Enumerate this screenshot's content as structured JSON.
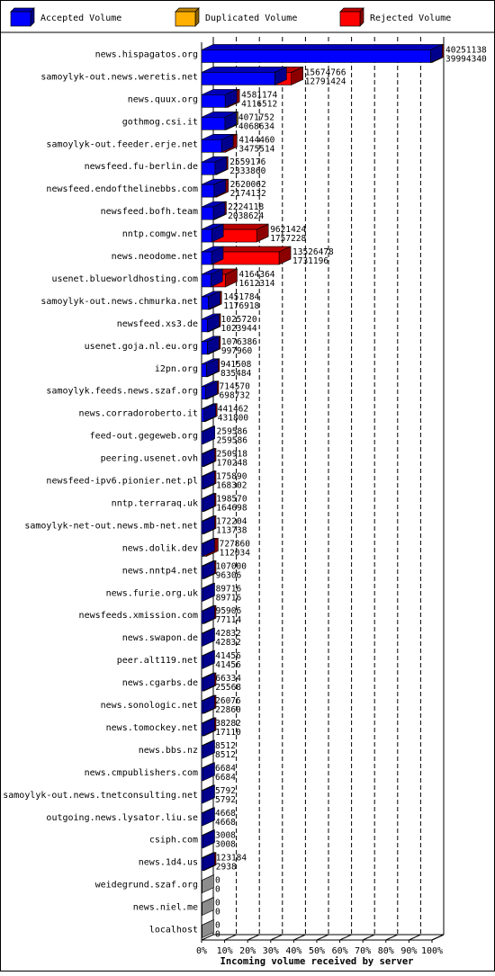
{
  "chart_data": {
    "type": "bar",
    "title": "",
    "xlabel": "Incoming volume received by server",
    "ylabel": "",
    "xlim": [
      0,
      100
    ],
    "x_unit": "percent",
    "x_ticks": [
      "0%",
      "10%",
      "20%",
      "30%",
      "40%",
      "50%",
      "60%",
      "70%",
      "80%",
      "90%",
      "100%"
    ],
    "legend_position": "top",
    "grid": true,
    "legend": [
      {
        "name": "Accepted Volume",
        "color": "#0000ff"
      },
      {
        "name": "Duplicated Volume",
        "color": "#ffb000"
      },
      {
        "name": "Rejected Volume",
        "color": "#ff0000"
      }
    ],
    "categories": [
      "news.hispagatos.org",
      "samoylyk-out.news.weretis.net",
      "news.quux.org",
      "gothmog.csi.it",
      "samoylyk-out.feeder.erje.net",
      "newsfeed.fu-berlin.de",
      "newsfeed.endofthelinebbs.com",
      "newsfeed.bofh.team",
      "nntp.comgw.net",
      "news.neodome.net",
      "usenet.blueworldhosting.com",
      "samoylyk-out.news.chmurka.net",
      "newsfeed.xs3.de",
      "usenet.goja.nl.eu.org",
      "i2pn.org",
      "samoylyk.feeds.news.szaf.org",
      "news.corradoroberto.it",
      "feed-out.gegeweb.org",
      "peering.usenet.ovh",
      "newsfeed-ipv6.pionier.net.pl",
      "nntp.terraraq.uk",
      "samoylyk-net-out.news.mb-net.net",
      "news.dolik.dev",
      "news.nntp4.net",
      "news.furie.org.uk",
      "newsfeeds.xmission.com",
      "news.swapon.de",
      "peer.alt119.net",
      "news.cgarbs.de",
      "news.sonologic.net",
      "news.tomockey.net",
      "news.bbs.nz",
      "news.cmpublishers.com",
      "samoylyk-out.news.tnetconsulting.net",
      "outgoing.news.lysator.liu.se",
      "csiph.com",
      "news.1d4.us",
      "weidegrund.szaf.org",
      "news.niel.me",
      "localhost"
    ],
    "total_volume": [
      40251138,
      15674766,
      4581174,
      4071752,
      4144460,
      2559176,
      2620062,
      2224118,
      9621424,
      13526478,
      4164364,
      1451784,
      1025720,
      1076386,
      941508,
      714570,
      441462,
      259586,
      250918,
      175890,
      198570,
      172204,
      727860,
      107000,
      89716,
      95906,
      42832,
      41456,
      66334,
      26076,
      38282,
      8512,
      6684,
      5792,
      4668,
      3008,
      123184,
      0,
      0,
      0
    ],
    "accepted_volume": [
      39994340,
      12791424,
      4116512,
      4068634,
      3475514,
      2333860,
      2174132,
      2038624,
      1757228,
      1731196,
      1612314,
      1176918,
      1023944,
      997960,
      835484,
      698732,
      431800,
      259586,
      170248,
      168302,
      164698,
      113738,
      112034,
      96306,
      89716,
      77114,
      42832,
      41456,
      25568,
      22860,
      17110,
      8512,
      6684,
      5792,
      4668,
      3008,
      2938,
      0,
      0,
      0
    ],
    "duplicate_category": "gothmog.csi.it"
  }
}
